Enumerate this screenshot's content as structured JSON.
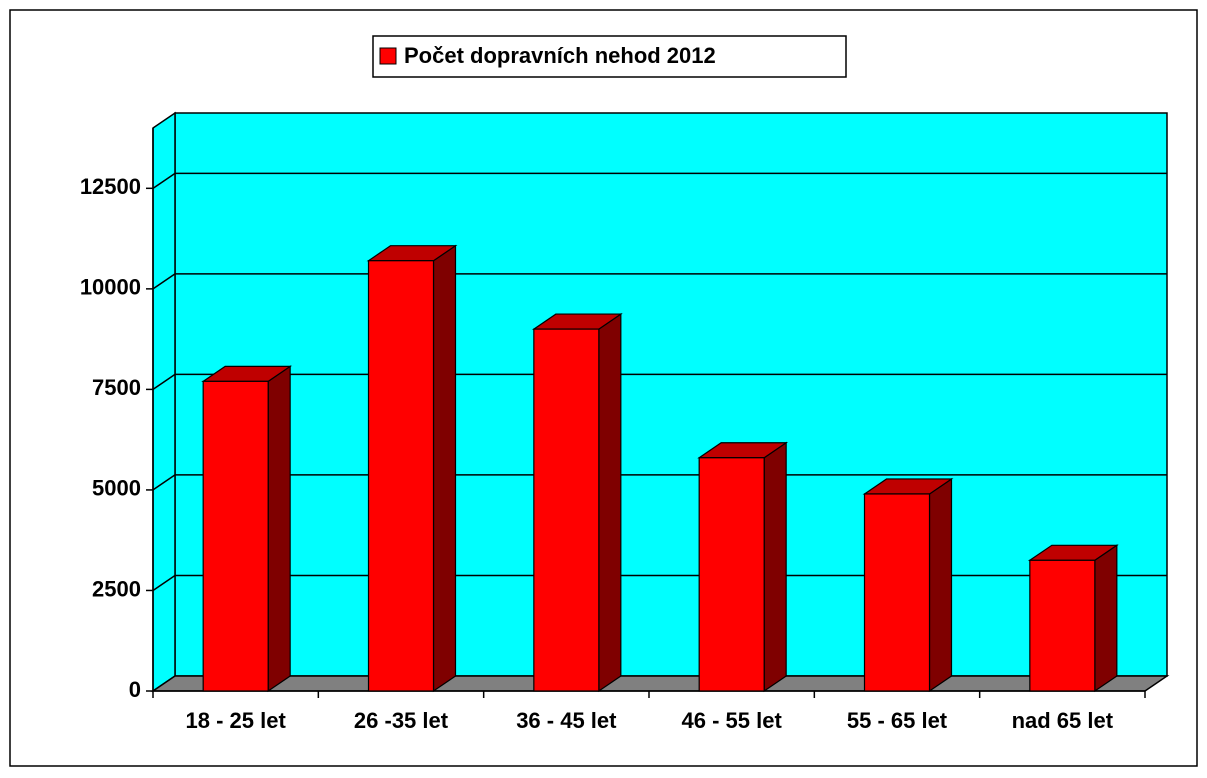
{
  "chart_data": {
    "type": "bar",
    "categories": [
      "18 - 25 let",
      "26 -35 let",
      "36 - 45 let",
      "46 - 55 let",
      "55 - 65 let",
      "nad 65 let"
    ],
    "series": [
      {
        "name": "Počet dopravních nehod 2012",
        "color": "#ff0000",
        "values": [
          7700,
          10700,
          9000,
          5800,
          4900,
          3250
        ]
      }
    ],
    "ylim": [
      0,
      14000
    ],
    "yticks": [
      0,
      2500,
      5000,
      7500,
      10000,
      12500
    ],
    "grid": true,
    "wall_color": "#00ffff",
    "floor_color": "#808080"
  }
}
